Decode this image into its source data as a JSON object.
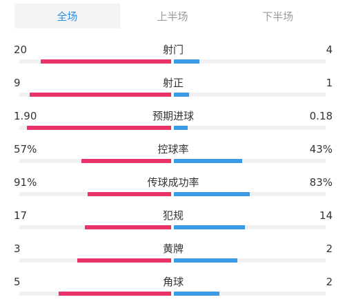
{
  "tabs": [
    {
      "label": "全场",
      "active": true
    },
    {
      "label": "上半场",
      "active": false
    },
    {
      "label": "下半场",
      "active": false
    }
  ],
  "colors": {
    "home_bar": "#e9336a",
    "away_bar": "#3b9ae6",
    "accent": "#2e8ee5"
  },
  "stats": [
    {
      "label": "射门",
      "home": "20",
      "away": "4",
      "home_fill": 0.86,
      "away_fill": 0.17
    },
    {
      "label": "射正",
      "home": "9",
      "away": "1",
      "home_fill": 0.93,
      "away_fill": 0.1
    },
    {
      "label": "预期进球",
      "home": "1.90",
      "away": "0.18",
      "home_fill": 0.95,
      "away_fill": 0.09
    },
    {
      "label": "控球率",
      "home": "57%",
      "away": "43%",
      "home_fill": 0.59,
      "away_fill": 0.45
    },
    {
      "label": "传球成功率",
      "home": "91%",
      "away": "83%",
      "home_fill": 0.55,
      "away_fill": 0.5
    },
    {
      "label": "犯规",
      "home": "17",
      "away": "14",
      "home_fill": 0.57,
      "away_fill": 0.47
    },
    {
      "label": "黄牌",
      "home": "3",
      "away": "2",
      "home_fill": 0.62,
      "away_fill": 0.42
    },
    {
      "label": "角球",
      "home": "5",
      "away": "2",
      "home_fill": 0.74,
      "away_fill": 0.3
    }
  ]
}
